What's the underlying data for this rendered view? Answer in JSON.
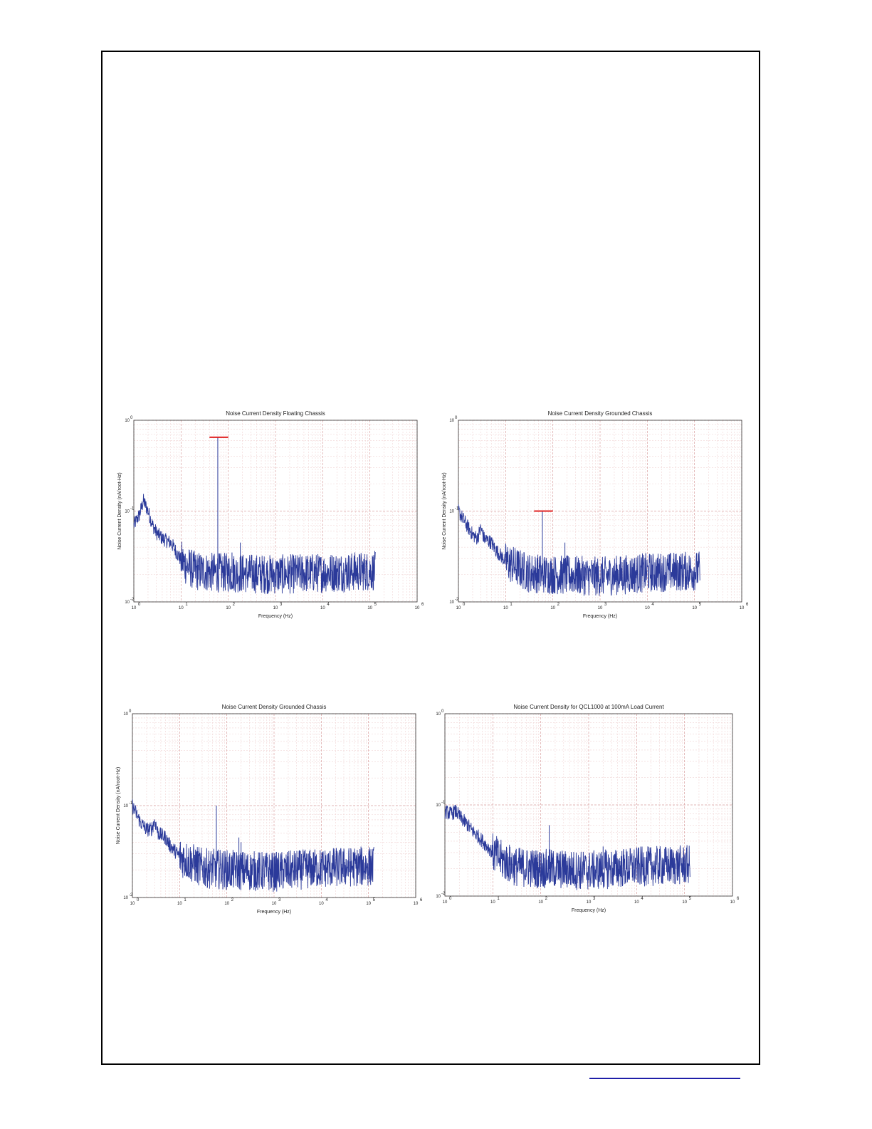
{
  "page": {
    "link_color": "#1f1fa8"
  },
  "colors": {
    "trace": "#2b3a9a",
    "marker": "#e02020",
    "grid_major": "#d9a0a0",
    "grid_minor": "#f0d4d4"
  },
  "chart_data": [
    {
      "type": "line",
      "title": "Noise Current Density Floating Chassis",
      "xlabel": "Frequency (Hz)",
      "ylabel": "Noise Current Density (nA/root-Hz)",
      "x_scale": "log",
      "y_scale": "log",
      "xlim": [
        1,
        1000000
      ],
      "ylim": [
        0.01,
        1
      ],
      "xticks": [
        "10",
        "10",
        "10",
        "10",
        "10",
        "10",
        "10"
      ],
      "xtick_exponents": [
        "0",
        "1",
        "2",
        "3",
        "4",
        "5",
        "6"
      ],
      "yticks": [
        "10",
        "10",
        "10"
      ],
      "ytick_exponents": [
        "-2",
        "-1",
        "0"
      ],
      "grid": true,
      "series": [
        {
          "noise_floor": 0.021,
          "points": [
            [
              1,
              0.07
            ],
            [
              1.3,
              0.09
            ],
            [
              1.6,
              0.13
            ],
            [
              2,
              0.1
            ],
            [
              2.5,
              0.07
            ],
            [
              3,
              0.058
            ],
            [
              4,
              0.05
            ],
            [
              5,
              0.047
            ],
            [
              6,
              0.045
            ],
            [
              7,
              0.04
            ],
            [
              8,
              0.035
            ],
            [
              10,
              0.029
            ],
            [
              13,
              0.025
            ],
            [
              20,
              0.022
            ],
            [
              50,
              0.021
            ],
            [
              100,
              0.021
            ],
            [
              1000,
              0.02
            ],
            [
              10000,
              0.021
            ],
            [
              130000,
              0.022
            ]
          ],
          "spikes": [
            [
              60,
              0.65
            ],
            [
              120,
              0.035
            ],
            [
              180,
              0.045
            ]
          ]
        }
      ],
      "annotations": [
        {
          "type": "marker_line",
          "x": [
            40,
            100
          ],
          "y": 0.65
        }
      ]
    },
    {
      "type": "line",
      "title": "Noise Current Density Grounded Chassis",
      "xlabel": "Frequency (Hz)",
      "ylabel": "Noise Current Density (nA/root-Hz)",
      "x_scale": "log",
      "y_scale": "log",
      "xlim": [
        1,
        1000000
      ],
      "ylim": [
        0.01,
        1
      ],
      "xticks": [
        "10",
        "10",
        "10",
        "10",
        "10",
        "10",
        "10"
      ],
      "xtick_exponents": [
        "0",
        "1",
        "2",
        "3",
        "4",
        "5",
        "6"
      ],
      "yticks": [
        "10",
        "10",
        "10"
      ],
      "ytick_exponents": [
        "-2",
        "-1",
        "0"
      ],
      "grid": true,
      "series": [
        {
          "noise_floor": 0.02,
          "points": [
            [
              1,
              0.1
            ],
            [
              1.5,
              0.07
            ],
            [
              2,
              0.055
            ],
            [
              2.5,
              0.05
            ],
            [
              3,
              0.065
            ],
            [
              3.5,
              0.05
            ],
            [
              5,
              0.045
            ],
            [
              6,
              0.038
            ],
            [
              8,
              0.032
            ],
            [
              10,
              0.028
            ],
            [
              15,
              0.025
            ],
            [
              30,
              0.021
            ],
            [
              100,
              0.02
            ],
            [
              1000,
              0.019
            ],
            [
              10000,
              0.021
            ],
            [
              130000,
              0.022
            ]
          ],
          "spikes": [
            [
              60,
              0.1
            ],
            [
              180,
              0.045
            ]
          ]
        }
      ],
      "annotations": [
        {
          "type": "marker_line",
          "x": [
            40,
            100
          ],
          "y": 0.1
        }
      ]
    },
    {
      "type": "line",
      "title": "Noise Current Density Grounded Chassis",
      "xlabel": "Frequency (Hz)",
      "ylabel": "Noise Current Density (nA/root-Hz)",
      "x_scale": "log",
      "y_scale": "log",
      "xlim": [
        1,
        1000000
      ],
      "ylim": [
        0.01,
        1
      ],
      "xticks": [
        "10",
        "10",
        "10",
        "10",
        "10",
        "10",
        "10"
      ],
      "xtick_exponents": [
        "0",
        "1",
        "2",
        "3",
        "4",
        "5",
        "6"
      ],
      "yticks": [
        "10",
        "10",
        "10"
      ],
      "ytick_exponents": [
        "-2",
        "-1",
        "0"
      ],
      "grid": true,
      "series": [
        {
          "noise_floor": 0.02,
          "points": [
            [
              1,
              0.1
            ],
            [
              1.5,
              0.065
            ],
            [
              2,
              0.055
            ],
            [
              2.5,
              0.055
            ],
            [
              3,
              0.068
            ],
            [
              3.5,
              0.05
            ],
            [
              5,
              0.045
            ],
            [
              6,
              0.038
            ],
            [
              8,
              0.032
            ],
            [
              10,
              0.028
            ],
            [
              15,
              0.025
            ],
            [
              30,
              0.021
            ],
            [
              100,
              0.02
            ],
            [
              1000,
              0.019
            ],
            [
              10000,
              0.021
            ],
            [
              130000,
              0.022
            ]
          ],
          "spikes": [
            [
              60,
              0.1
            ],
            [
              180,
              0.045
            ],
            [
              200,
              0.04
            ]
          ]
        }
      ],
      "annotations": []
    },
    {
      "type": "line",
      "title": "Noise Current Density for QCL1000 at 100mA Load Current",
      "xlabel": "Frequency (Hz)",
      "ylabel": "",
      "x_scale": "log",
      "y_scale": "log",
      "xlim": [
        1,
        1000000
      ],
      "ylim": [
        0.01,
        1
      ],
      "xticks": [
        "10",
        "10",
        "10",
        "10",
        "10",
        "10",
        "10"
      ],
      "xtick_exponents": [
        "0",
        "1",
        "2",
        "3",
        "4",
        "5",
        "6"
      ],
      "yticks": [
        "10",
        "10",
        "10"
      ],
      "ytick_exponents": [
        "-2",
        "-1",
        "0"
      ],
      "grid": true,
      "series": [
        {
          "noise_floor": 0.02,
          "points": [
            [
              1,
              0.085
            ],
            [
              1.3,
              0.08
            ],
            [
              1.7,
              0.085
            ],
            [
              2,
              0.075
            ],
            [
              3,
              0.06
            ],
            [
              4,
              0.05
            ],
            [
              5,
              0.045
            ],
            [
              7,
              0.037
            ],
            [
              10,
              0.03
            ],
            [
              15,
              0.025
            ],
            [
              30,
              0.021
            ],
            [
              100,
              0.02
            ],
            [
              1000,
              0.019
            ],
            [
              10000,
              0.021
            ],
            [
              130000,
              0.022
            ]
          ],
          "spikes": [
            [
              150,
              0.06
            ],
            [
              2000,
              0.035
            ]
          ]
        }
      ],
      "annotations": []
    }
  ]
}
